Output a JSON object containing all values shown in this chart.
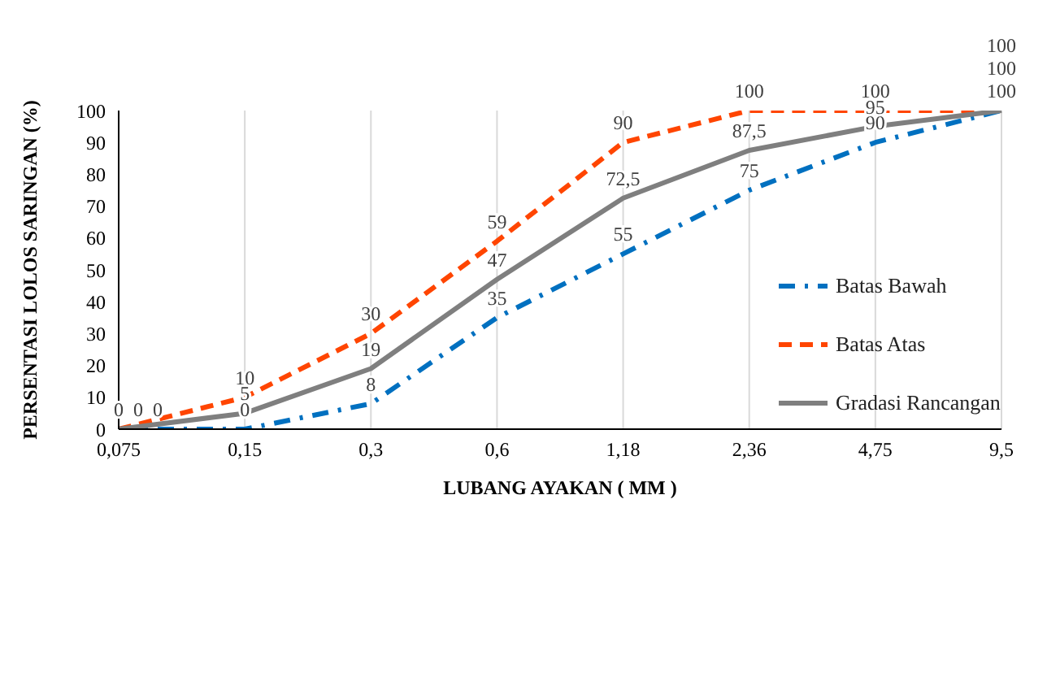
{
  "chart_data": {
    "type": "line",
    "xlabel": "LUBANG AYAKAN ( MM )",
    "ylabel": "PERSENTASI LOLOS SARINGAN (%)",
    "categories": [
      "0,075",
      "0,15",
      "0,3",
      "0,6",
      "1,18",
      "2,36",
      "4,75",
      "9,5"
    ],
    "ylim": [
      0,
      100
    ],
    "yticks": [
      0,
      10,
      20,
      30,
      40,
      50,
      60,
      70,
      80,
      90,
      100
    ],
    "grid": "x",
    "legend": "right",
    "marker": "none",
    "series": [
      {
        "name": "Batas Bawah",
        "color": "#0070c0",
        "line_style": "dashdot",
        "values": [
          0,
          0,
          8,
          35,
          55,
          75,
          90,
          100
        ],
        "value_labels": [
          "0",
          "0",
          "8",
          "35",
          "55",
          "75",
          "90",
          "100"
        ]
      },
      {
        "name": "Batas Atas",
        "color": "#ff4500",
        "line_style": "dashed",
        "values": [
          0,
          10,
          30,
          59,
          90,
          100,
          100,
          100
        ],
        "value_labels": [
          "0",
          "10",
          "30",
          "59",
          "90",
          "100",
          "100",
          "100"
        ]
      },
      {
        "name": "Gradasi Rancangan",
        "color": "#7f7f7f",
        "line_style": "solid",
        "values": [
          0,
          5,
          19,
          47,
          72.5,
          87.5,
          95,
          100
        ],
        "value_labels": [
          "0",
          "5",
          "19",
          "47",
          "72,5",
          "87,5",
          "95",
          "100"
        ]
      }
    ]
  }
}
